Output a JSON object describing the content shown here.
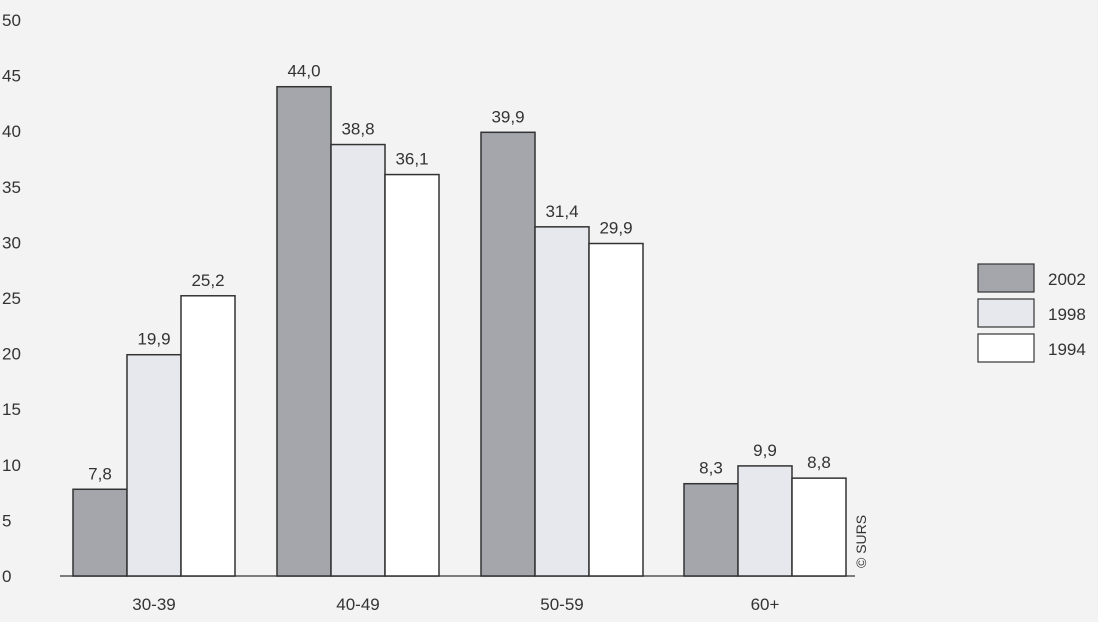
{
  "chart_data": {
    "type": "bar",
    "categories": [
      "30-39",
      "40-49",
      "50-59",
      "60+"
    ],
    "series": [
      {
        "name": "2002",
        "values": [
          7.8,
          44.0,
          39.9,
          8.3
        ],
        "color": "#a4a6ab"
      },
      {
        "name": "1998",
        "values": [
          19.9,
          38.8,
          31.4,
          9.9
        ],
        "color": "#e7e8ee"
      },
      {
        "name": "1994",
        "values": [
          25.2,
          36.1,
          29.9,
          8.8
        ],
        "color": "#ffffff"
      }
    ],
    "value_labels": [
      [
        "7,8",
        "19,9",
        "25,2"
      ],
      [
        "44,0",
        "38,8",
        "36,1"
      ],
      [
        "39,9",
        "31,4",
        "29,9"
      ],
      [
        "8,3",
        "9,9",
        "8,8"
      ]
    ],
    "yticks": [
      "0",
      "5",
      "10",
      "15",
      "20",
      "25",
      "30",
      "35",
      "40",
      "45",
      "50"
    ],
    "ylim": [
      0,
      50
    ],
    "title": "",
    "xlabel": "",
    "ylabel": "",
    "grid": false,
    "legend_position": "right",
    "credit": "© SURS",
    "colors": {
      "background": "#f3f3f3",
      "stroke": "#333333",
      "text": "#333333"
    }
  }
}
